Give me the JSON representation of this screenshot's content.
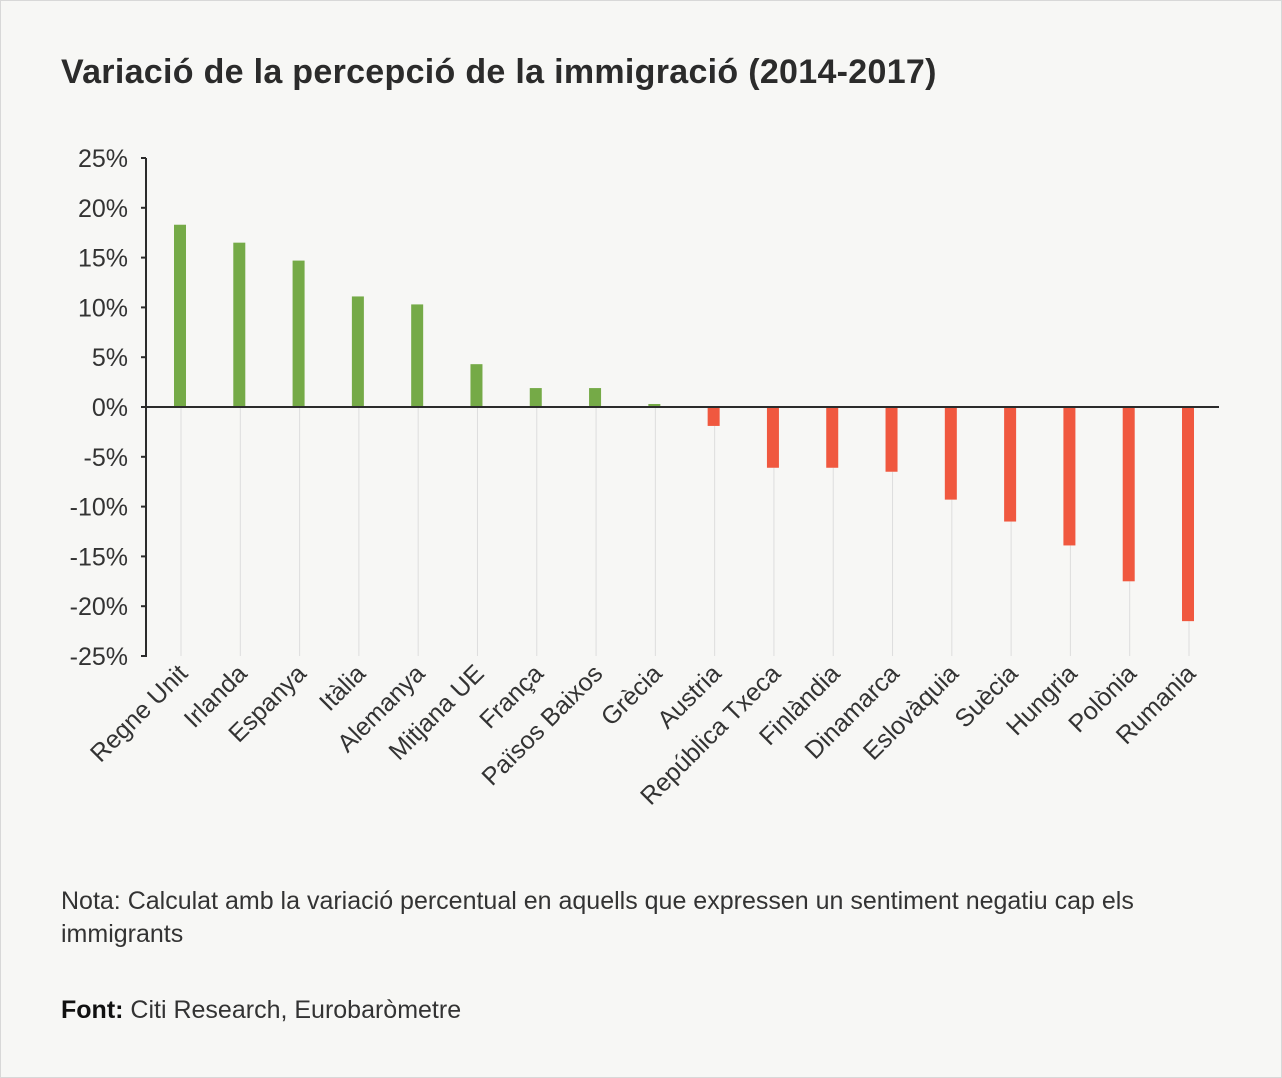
{
  "title": "Variació de la percepció de la immigració (2014-2017)",
  "note": "Nota: Calculat amb la variació percentual en aquells que expressen un sentiment negatiu cap els immigrants",
  "source_label": "Font:",
  "source_text": "Citi Research, Eurobaròmetre",
  "colors": {
    "positive": "#75aa47",
    "negative": "#f0583f",
    "background": "#f7f7f5"
  },
  "chart_data": {
    "type": "bar",
    "title": "Variació de la percepció de la immigració (2014-2017)",
    "categories": [
      "Regne Unit",
      "Irlanda",
      "Espanya",
      "Itàlia",
      "Alemanya",
      "Mitjana UE",
      "França",
      "Països Baixos",
      "Grècia",
      "Austria",
      "República Txeca",
      "Finlàndia",
      "Dinamarca",
      "Eslovàquia",
      "Suècia",
      "Hungria",
      "Polònia",
      "Rumania"
    ],
    "values": [
      18.3,
      16.5,
      14.7,
      11.1,
      10.3,
      4.3,
      1.9,
      1.9,
      0.3,
      -1.9,
      -6.1,
      -6.1,
      -6.5,
      -9.3,
      -11.5,
      -13.9,
      -17.5,
      -21.5
    ],
    "ylim": [
      -25,
      25
    ],
    "yticks": [
      "25%",
      "20%",
      "15%",
      "10%",
      "5%",
      "0%",
      "-5%",
      "-10%",
      "-15%",
      "-20%",
      "-25%"
    ],
    "xlabel": "",
    "ylabel": "",
    "grid": "vertical category lines",
    "legend": "none"
  }
}
